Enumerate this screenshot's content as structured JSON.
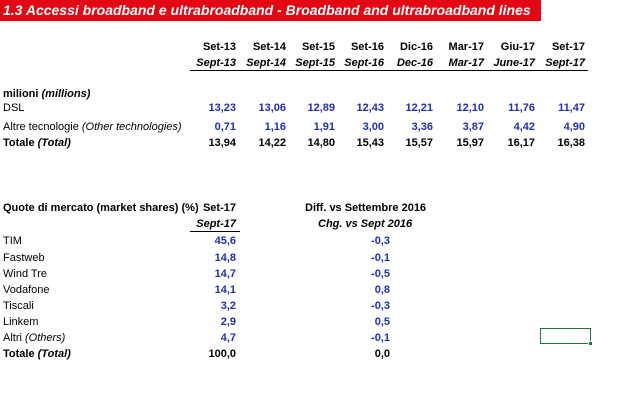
{
  "title": "1.3 Accessi broadband e ultrabroadband - Broadband and ultrabroadband lines",
  "table1": {
    "periods_it": [
      "Set-13",
      "Set-14",
      "Set-15",
      "Set-16",
      "Dic-16",
      "Mar-17",
      "Giu-17",
      "Set-17"
    ],
    "periods_en": [
      "Sept-13",
      "Sept-14",
      "Sept-15",
      "Sept-16",
      "Dec-16",
      "Mar-17",
      "June-17",
      "Sept-17"
    ],
    "unit_it": "milioni",
    "unit_en": "(millions)",
    "rows": [
      {
        "label": "DSL",
        "label_en": "",
        "values": [
          "13,23",
          "13,06",
          "12,89",
          "12,43",
          "12,21",
          "12,10",
          "11,76",
          "11,47"
        ]
      },
      {
        "label": "Altre tecnologie ",
        "label_en": "(Other technologies)",
        "values": [
          "0,71",
          "1,16",
          "1,91",
          "3,00",
          "3,36",
          "3,87",
          "4,42",
          "4,90"
        ]
      }
    ],
    "total": {
      "label": "Totale ",
      "label_en": "(Total)",
      "values": [
        "13,94",
        "14,22",
        "14,80",
        "15,43",
        "15,57",
        "15,97",
        "16,17",
        "16,38"
      ]
    }
  },
  "table2": {
    "header": "Quote di mercato (market shares)  (%)",
    "col1_it": "Set-17",
    "col1_en": "Sept-17",
    "col2_it": "Diff. vs Settembre 2016",
    "col2_en": "Chg. vs Sept 2016",
    "rows": [
      {
        "label": "TIM",
        "label_en": "",
        "share": "45,6",
        "diff": "-0,3"
      },
      {
        "label": "Fastweb",
        "label_en": "",
        "share": "14,8",
        "diff": "-0,1"
      },
      {
        "label": "Wind Tre",
        "label_en": "",
        "share": "14,7",
        "diff": "-0,5"
      },
      {
        "label": "Vodafone",
        "label_en": "",
        "share": "14,1",
        "diff": "0,8"
      },
      {
        "label": "Tiscali",
        "label_en": "",
        "share": "3,2",
        "diff": "-0,3"
      },
      {
        "label": "Linkem",
        "label_en": "",
        "share": "2,9",
        "diff": "0,5"
      },
      {
        "label": "Altri ",
        "label_en": "(Others)",
        "share": "4,7",
        "diff": "-0,1"
      }
    ],
    "total": {
      "label": "Totale ",
      "label_en": "(Total)",
      "share": "100,0",
      "diff": "0,0"
    }
  },
  "colors": {
    "title_bg": "#e30613",
    "value_blue": "#1f2fb8",
    "selection": "#217346"
  }
}
